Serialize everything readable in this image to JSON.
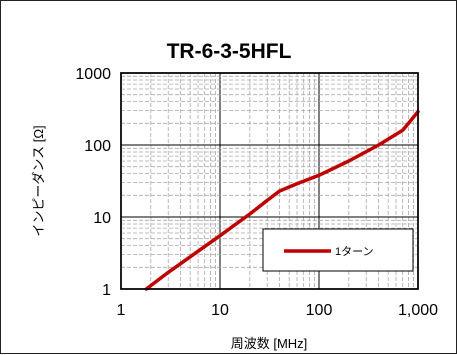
{
  "chart_data": {
    "type": "line",
    "title": "TR-6-3-5HFL",
    "xlabel": "周波数 [MHz]",
    "ylabel": "インピーダンス [Ω]",
    "x_scale": "log",
    "y_scale": "log",
    "xlim": [
      1,
      1000
    ],
    "ylim": [
      1,
      1000
    ],
    "x_ticks": [
      "1",
      "10",
      "100",
      "1,000"
    ],
    "y_ticks": [
      "1",
      "10",
      "100",
      "1000"
    ],
    "grid": true,
    "legend_position": "bottom-right",
    "series": [
      {
        "name": "1ターン",
        "color": "#c00000",
        "x": [
          1.8,
          3,
          5,
          10,
          20,
          30,
          40,
          60,
          100,
          200,
          400,
          700,
          1000
        ],
        "y": [
          1,
          1.7,
          2.8,
          5.5,
          11,
          17,
          23,
          29,
          38,
          60,
          100,
          160,
          290
        ]
      }
    ]
  }
}
